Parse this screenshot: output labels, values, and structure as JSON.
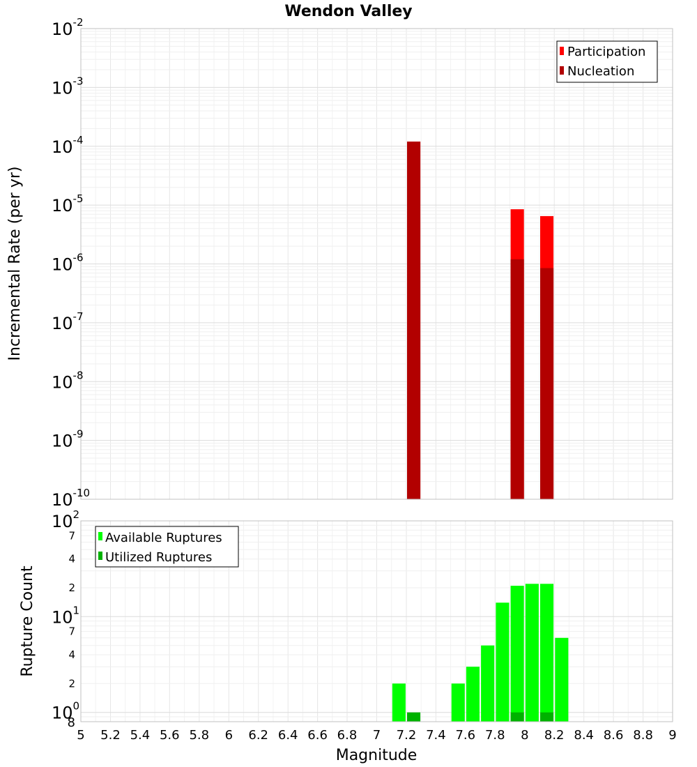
{
  "chart_data": [
    {
      "type": "bar",
      "title": "Wendon Valley",
      "xlabel": "",
      "ylabel": "Incremental Rate (per yr)",
      "xlim": [
        5,
        9
      ],
      "ylim": [
        1e-10,
        0.01
      ],
      "yscale": "log",
      "grid": true,
      "legend_position": "top-right",
      "y_ticks": [
        {
          "base": "10",
          "exp": "-10"
        },
        {
          "base": "10",
          "exp": "-9"
        },
        {
          "base": "10",
          "exp": "-8"
        },
        {
          "base": "10",
          "exp": "-7"
        },
        {
          "base": "10",
          "exp": "-6"
        },
        {
          "base": "10",
          "exp": "-5"
        },
        {
          "base": "10",
          "exp": "-4"
        },
        {
          "base": "10",
          "exp": "-3"
        },
        {
          "base": "10",
          "exp": "-2"
        }
      ],
      "bar_width": 0.09,
      "series": [
        {
          "name": "Participation",
          "color": "#ff0000",
          "x": [
            7.25,
            7.95,
            8.15
          ],
          "values": [
            0.00012,
            8.5e-06,
            6.5e-06
          ]
        },
        {
          "name": "Nucleation",
          "color": "#b20000",
          "x": [
            7.25,
            7.95,
            8.15
          ],
          "values": [
            0.00012,
            1.2e-06,
            8.5e-07
          ]
        }
      ]
    },
    {
      "type": "bar",
      "title": "",
      "xlabel": "Magnitude",
      "ylabel": "Rupture Count",
      "xlim": [
        5,
        9
      ],
      "ylim": [
        0.8,
        100
      ],
      "yscale": "log",
      "grid": true,
      "legend_position": "top-left",
      "x_ticks": [
        "5",
        "5.2",
        "5.4",
        "5.6",
        "5.8",
        "6",
        "6.2",
        "6.4",
        "6.6",
        "6.8",
        "7",
        "7.2",
        "7.4",
        "7.6",
        "7.8",
        "8",
        "8.2",
        "8.4",
        "8.6",
        "8.8",
        "9"
      ],
      "y_major_ticks": [
        {
          "base": "10",
          "exp": "0"
        },
        {
          "base": "10",
          "exp": "1"
        },
        {
          "base": "10",
          "exp": "2"
        }
      ],
      "y_minor_ticks": [
        "8",
        "2",
        "4",
        "7",
        "2",
        "4",
        "7"
      ],
      "bar_width": 0.09,
      "series": [
        {
          "name": "Available Ruptures",
          "color": "#00ff00",
          "x": [
            7.15,
            7.55,
            7.65,
            7.75,
            7.85,
            7.95,
            8.05,
            8.15,
            8.25
          ],
          "values": [
            2,
            2,
            3,
            5,
            14,
            21,
            22,
            22,
            6
          ]
        },
        {
          "name": "Utilized Ruptures",
          "color": "#00b200",
          "x": [
            7.25,
            7.95,
            8.15
          ],
          "values": [
            1,
            1,
            1
          ]
        }
      ]
    }
  ]
}
